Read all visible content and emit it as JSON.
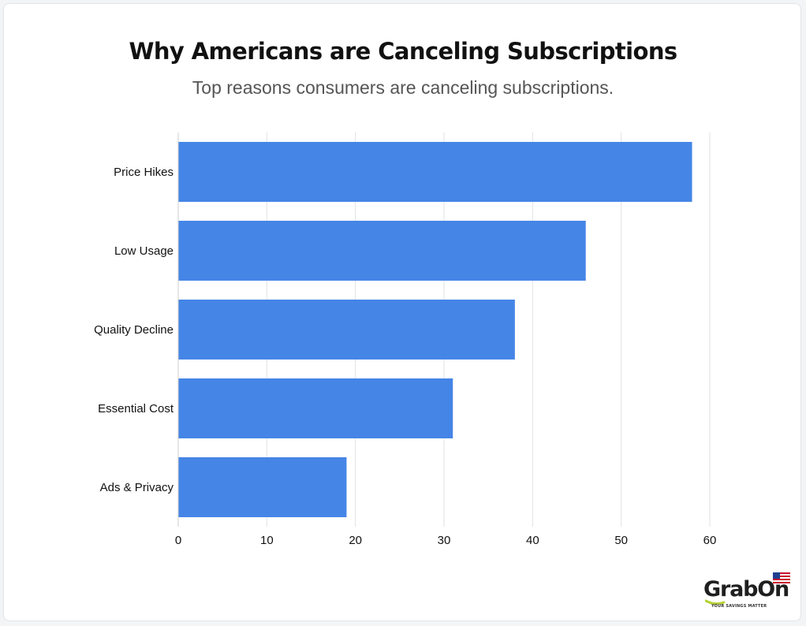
{
  "chart_data": {
    "type": "bar",
    "orientation": "horizontal",
    "title": "Why Americans are Canceling Subscriptions",
    "subtitle": "Top reasons consumers are canceling subscriptions.",
    "categories": [
      "Price Hikes",
      "Low Usage",
      "Quality Decline",
      "Essential Cost",
      "Ads & Privacy"
    ],
    "values": [
      58,
      46,
      38,
      31,
      19
    ],
    "xlim": [
      0,
      60
    ],
    "xticks": [
      "0",
      "10",
      "20",
      "30",
      "40",
      "50",
      "60"
    ],
    "grid": true,
    "bar_color": "#4585e6",
    "grid_color": "#e2e2e2"
  },
  "logo": {
    "name": "GrabOn",
    "tagline": "YOUR SAVINGS MATTER",
    "accent_color": "#b6d334"
  }
}
